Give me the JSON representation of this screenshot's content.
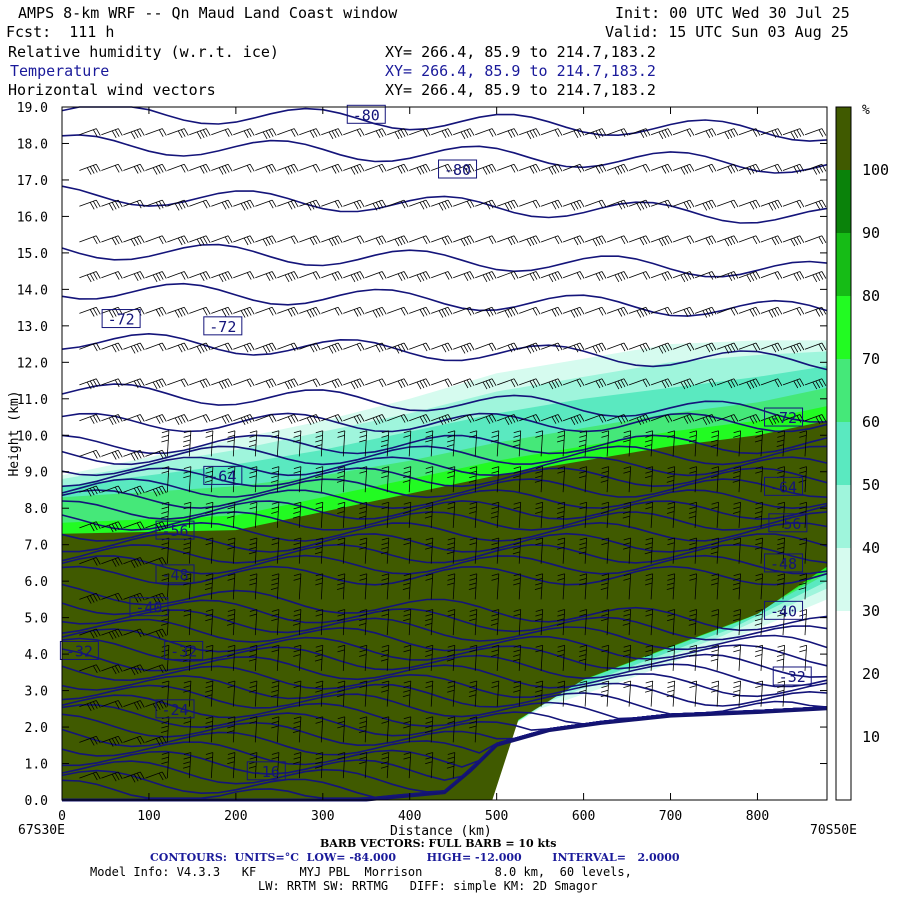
{
  "header": {
    "title": "AMPS 8-km WRF -- Qn Maud Land Coast window",
    "init": "Init: 00 UTC Wed 30 Jul 25",
    "fcst": "Fcst:  111 h",
    "valid": "Valid: 15 UTC Sun 03 Aug 25",
    "fields": [
      {
        "name": "Relative humidity (w.r.t. ice)",
        "xy": "XY= 266.4, 85.9 to 214.7,183.2",
        "color": "#000000"
      },
      {
        "name": "Temperature",
        "xy": "XY= 266.4, 85.9 to 214.7,183.2",
        "color": "#1a1a9a"
      },
      {
        "name": "Horizontal wind vectors",
        "xy": "XY= 266.4, 85.9 to 214.7,183.2",
        "color": "#000000"
      }
    ]
  },
  "footer": {
    "left_label": "67S30E",
    "right_label": "70S50E",
    "barb": "BARB VECTORS: FULL BARB = 10 kts",
    "contours": "CONTOURS:  UNITS=°C  LOW= -84.000        HIGH= -12.000        INTERVAL=   2.0000",
    "model_info_1": "Model Info: V4.3.3   KF      MYJ PBL  Morrison          8.0 km,  60 levels,",
    "model_info_2": "LW: RRTM SW: RRTMG   DIFF: simple KM: 2D Smagor"
  },
  "chart_data": {
    "type": "heatmap",
    "xlabel": "Distance (km)",
    "ylabel": "Height (km)",
    "xlim": [
      0,
      880
    ],
    "ylim": [
      0,
      19
    ],
    "x_ticks": [
      0,
      100,
      200,
      300,
      400,
      500,
      600,
      700,
      800
    ],
    "y_ticks": [
      "0.0",
      "1.0",
      "2.0",
      "3.0",
      "4.0",
      "5.0",
      "6.0",
      "7.0",
      "8.0",
      "9.0",
      "10.0",
      "11.0",
      "12.0",
      "13.0",
      "14.0",
      "15.0",
      "16.0",
      "17.0",
      "18.0",
      "19.0"
    ],
    "colorbar": {
      "unit": "%",
      "levels": [
        10,
        20,
        30,
        40,
        50,
        60,
        70,
        80,
        90,
        100
      ],
      "colors": [
        "#ffffff",
        "#ffffff",
        "#ffffff",
        "#d6fbef",
        "#9ff5dc",
        "#5ae9c0",
        "#45e879",
        "#22fb22",
        "#16bc16",
        "#0a820a",
        "#405a00"
      ]
    },
    "rh_layers": [
      {
        "level": 30,
        "color": "#d6fbef",
        "top": [
          [
            0,
            8.9
          ],
          [
            200,
            9.9
          ],
          [
            300,
            10.4
          ],
          [
            400,
            11.0
          ],
          [
            500,
            11.7
          ],
          [
            600,
            12.1
          ],
          [
            700,
            12.5
          ],
          [
            800,
            12.6
          ],
          [
            880,
            12.6
          ]
        ],
        "bottom": [
          [
            450,
            0
          ],
          [
            480,
            1.5
          ],
          [
            550,
            2.5
          ],
          [
            650,
            3.3
          ],
          [
            750,
            4.2
          ],
          [
            880,
            5.5
          ]
        ]
      },
      {
        "level": 40,
        "color": "#9ff5dc",
        "top": [
          [
            0,
            8.8
          ],
          [
            200,
            9.6
          ],
          [
            300,
            10.1
          ],
          [
            400,
            10.6
          ],
          [
            500,
            11.2
          ],
          [
            600,
            11.6
          ],
          [
            700,
            12.0
          ],
          [
            800,
            12.2
          ],
          [
            880,
            12.3
          ]
        ],
        "bottom": [
          [
            460,
            0
          ],
          [
            490,
            1.6
          ],
          [
            560,
            2.7
          ],
          [
            660,
            3.6
          ],
          [
            760,
            4.5
          ],
          [
            880,
            5.8
          ]
        ]
      },
      {
        "level": 50,
        "color": "#5ae9c0",
        "top": [
          [
            0,
            8.6
          ],
          [
            200,
            9.2
          ],
          [
            300,
            9.6
          ],
          [
            400,
            10.1
          ],
          [
            500,
            10.6
          ],
          [
            600,
            11.0
          ],
          [
            700,
            11.3
          ],
          [
            800,
            11.6
          ],
          [
            880,
            11.9
          ]
        ],
        "bottom": [
          [
            470,
            0
          ],
          [
            500,
            1.8
          ],
          [
            570,
            2.9
          ],
          [
            670,
            3.8
          ],
          [
            770,
            4.7
          ],
          [
            880,
            6.0
          ]
        ]
      },
      {
        "level": 70,
        "color": "#45e879",
        "top": [
          [
            0,
            8.3
          ],
          [
            200,
            8.6
          ],
          [
            300,
            8.9
          ],
          [
            400,
            9.3
          ],
          [
            500,
            9.8
          ],
          [
            600,
            10.2
          ],
          [
            700,
            10.6
          ],
          [
            800,
            10.9
          ],
          [
            880,
            11.3
          ]
        ],
        "bottom": [
          [
            480,
            0
          ],
          [
            510,
            2.0
          ],
          [
            580,
            3.1
          ],
          [
            680,
            4.0
          ],
          [
            780,
            4.9
          ],
          [
            880,
            6.2
          ]
        ]
      },
      {
        "level": 80,
        "color": "#22fb22",
        "top": [
          [
            0,
            7.6
          ],
          [
            200,
            7.8
          ],
          [
            300,
            8.3
          ],
          [
            400,
            8.8
          ],
          [
            500,
            9.3
          ],
          [
            600,
            9.7
          ],
          [
            700,
            10.1
          ],
          [
            800,
            10.4
          ],
          [
            880,
            10.8
          ]
        ],
        "bottom": [
          [
            490,
            0
          ],
          [
            520,
            2.1
          ],
          [
            590,
            3.2
          ],
          [
            690,
            4.1
          ],
          [
            790,
            5.0
          ],
          [
            880,
            6.3
          ]
        ]
      },
      {
        "level": 100,
        "color": "#405a00",
        "top": [
          [
            0,
            7.3
          ],
          [
            200,
            7.4
          ],
          [
            300,
            7.9
          ],
          [
            400,
            8.4
          ],
          [
            500,
            8.9
          ],
          [
            600,
            9.3
          ],
          [
            700,
            9.7
          ],
          [
            800,
            10.0
          ],
          [
            880,
            10.4
          ]
        ],
        "bottom": [
          [
            495,
            0
          ],
          [
            525,
            2.2
          ],
          [
            600,
            3.3
          ],
          [
            700,
            4.2
          ],
          [
            800,
            5.1
          ],
          [
            880,
            6.4
          ]
        ]
      }
    ],
    "terrain": [
      [
        0,
        0
      ],
      [
        350,
        0
      ],
      [
        440,
        0.2
      ],
      [
        470,
        0.8
      ],
      [
        500,
        1.5
      ],
      [
        560,
        1.9
      ],
      [
        620,
        2.1
      ],
      [
        700,
        2.3
      ],
      [
        800,
        2.4
      ],
      [
        880,
        2.5
      ]
    ],
    "isotherm_labels": [
      {
        "text": "-80",
        "x": 350,
        "y": 18.8
      },
      {
        "text": "-80",
        "x": 455,
        "y": 17.3
      },
      {
        "text": "-72",
        "x": 68,
        "y": 13.2
      },
      {
        "text": "-72",
        "x": 185,
        "y": 13.0
      },
      {
        "text": "-72",
        "x": 830,
        "y": 10.5
      },
      {
        "text": "-64",
        "x": 185,
        "y": 8.9
      },
      {
        "text": "-64",
        "x": 830,
        "y": 8.6
      },
      {
        "text": "-56",
        "x": 130,
        "y": 7.4
      },
      {
        "text": "-56",
        "x": 835,
        "y": 7.6
      },
      {
        "text": "-48",
        "x": 130,
        "y": 6.2
      },
      {
        "text": "-48",
        "x": 830,
        "y": 6.5
      },
      {
        "text": "-40",
        "x": 100,
        "y": 5.3
      },
      {
        "text": "-40",
        "x": 830,
        "y": 5.2
      },
      {
        "text": "-32",
        "x": 20,
        "y": 4.1
      },
      {
        "text": "-32",
        "x": 140,
        "y": 4.1
      },
      {
        "text": "-32",
        "x": 840,
        "y": 3.4
      },
      {
        "text": "-24",
        "x": 130,
        "y": 2.5
      },
      {
        "text": "-16",
        "x": 235,
        "y": 0.8
      }
    ],
    "isotherm_levels": [
      18.9,
      18.0,
      16.6,
      15.1,
      14.0,
      12.6,
      11.2,
      10.2,
      9.6,
      9.3,
      9.0,
      8.7,
      8.4,
      8.1,
      7.8,
      7.5,
      7.2,
      6.9,
      6.6,
      6.3,
      6.0,
      5.7,
      5.4,
      5.1,
      4.8,
      4.5,
      4.2,
      3.9,
      3.6,
      3.3,
      3.0,
      2.7,
      2.4,
      2.1,
      1.8,
      1.5,
      1.2,
      0.9,
      0.6,
      0.3
    ],
    "wind_columns": 34,
    "wind_rows": 19
  }
}
